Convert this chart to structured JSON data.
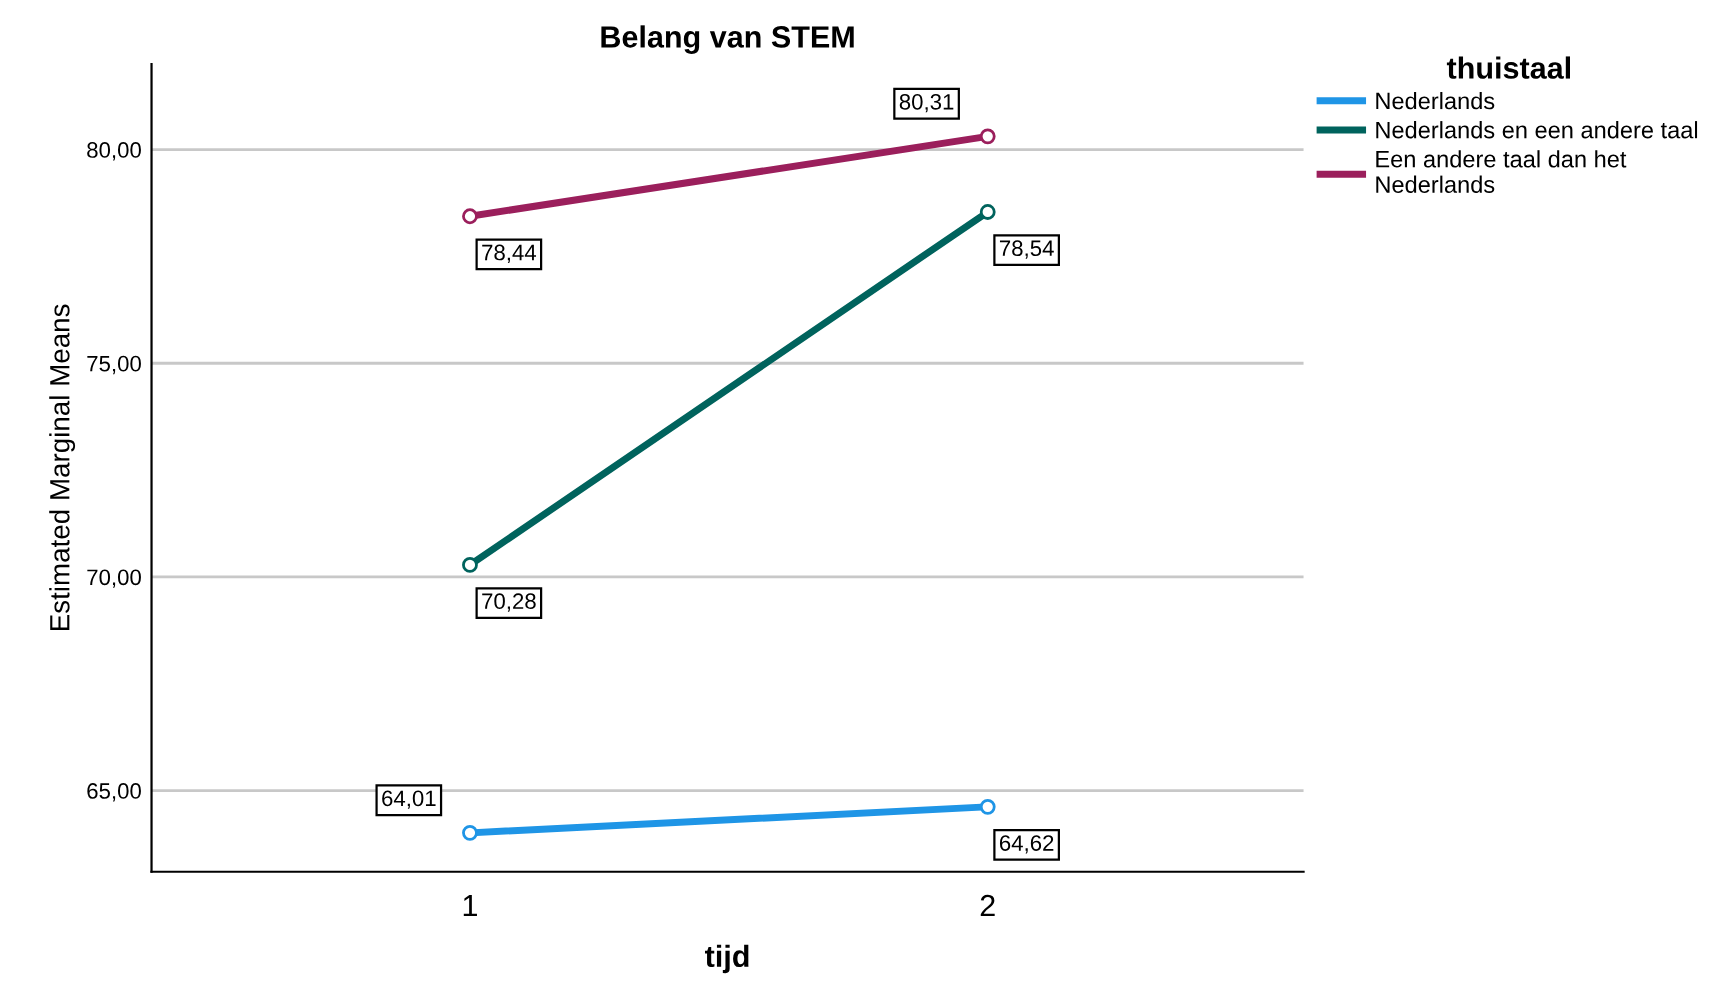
{
  "chart_data": {
    "type": "line",
    "title": "Belang van STEM",
    "xlabel": "tijd",
    "ylabel": "Estimated Marginal Means",
    "legend_title": "thuistaal",
    "categories": [
      "1",
      "2"
    ],
    "series": [
      {
        "name": "Nederlands",
        "color": "#1f95e6",
        "values": [
          64.01,
          64.62
        ],
        "value_labels": [
          "64,01",
          "64,62"
        ]
      },
      {
        "name": "Nederlands en een andere taal",
        "color": "#00635d",
        "values": [
          70.28,
          78.54
        ],
        "value_labels": [
          "70,28",
          "78,54"
        ]
      },
      {
        "name": "Een andere taal dan het Nederlands",
        "color": "#9b1f5c",
        "values": [
          78.44,
          80.31
        ],
        "value_labels": [
          "78,44",
          "80,31"
        ]
      }
    ],
    "ylim": [
      63.1,
      82.0
    ],
    "yticks": [
      {
        "value": 65,
        "label": "65,00"
      },
      {
        "value": 70,
        "label": "70,00"
      },
      {
        "value": 75,
        "label": "75,00"
      },
      {
        "value": 80,
        "label": "80,00"
      }
    ],
    "grid": "y",
    "legend": "top right",
    "marker": "circle",
    "line_style": "solid"
  }
}
